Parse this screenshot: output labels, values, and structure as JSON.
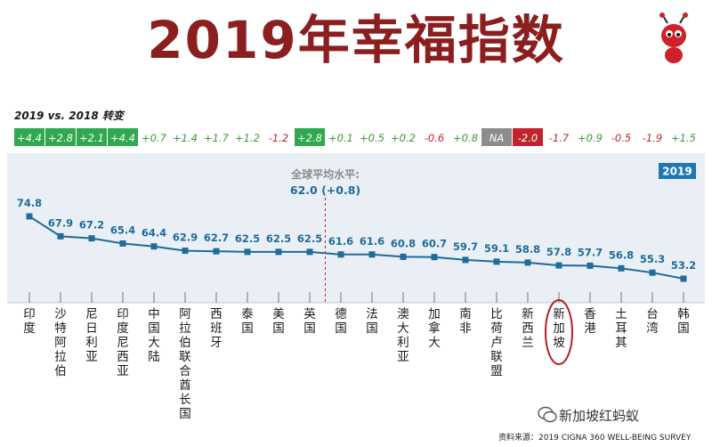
{
  "title": "2019年幸福指数",
  "change_label": "2019 vs. 2018 转变",
  "footer": {
    "source": "资料来源：2019 CIGNA 360 WELL-BEING SURVEY",
    "watermark": "新加坡红蚂蚁"
  },
  "colors": {
    "title": "#8b1e1e",
    "line": "#1f6b99",
    "positive_change": "#3a9a3a",
    "negative_change": "#c0232c",
    "badge_green": "#2fa84f",
    "badge_grey": "#8c8c8c",
    "badge_red": "#c0232c",
    "year_badge": "#1f78b4",
    "panel_bg": "#e9eff4",
    "singapore_circle": "#b21f24"
  },
  "chart_data": {
    "type": "line",
    "year_badge": "2019",
    "global_average": {
      "label": "全球平均水平:",
      "value_text": "62.0 (+0.8)",
      "value": 62.0
    },
    "categories": [
      "印度",
      "沙特阿拉伯",
      "尼日利亚",
      "印度尼西亚",
      "中国大陆",
      "阿拉伯联合酋长国",
      "西班牙",
      "泰国",
      "美国",
      "英国",
      "德国",
      "法国",
      "澳大利亚",
      "加拿大",
      "南非",
      "比荷卢联盟",
      "新西兰",
      "新加坡",
      "香港",
      "土耳其",
      "台湾",
      "韩国"
    ],
    "values": [
      74.8,
      67.9,
      67.2,
      65.4,
      64.4,
      62.9,
      62.7,
      62.5,
      62.5,
      62.5,
      61.6,
      61.6,
      60.8,
      60.7,
      59.7,
      59.1,
      58.8,
      57.8,
      57.7,
      56.8,
      55.3,
      53.2
    ],
    "value_labels": [
      "74.8",
      "67.9",
      "67.2",
      "65.4",
      "64.4",
      "62.9",
      "62.7",
      "62.5",
      "62.5",
      "62.5",
      "61.6",
      "61.6",
      "60.8",
      "60.7",
      "59.7",
      "59.1",
      "58.8",
      "57.8",
      "57.7",
      "56.8",
      "55.3",
      "53.2"
    ],
    "changes": [
      {
        "text": "+4.4",
        "style": "green-badge"
      },
      {
        "text": "+2.8",
        "style": "green-badge"
      },
      {
        "text": "+2.1",
        "style": "green-badge"
      },
      {
        "text": "+4.4",
        "style": "green-badge"
      },
      {
        "text": "+0.7",
        "style": "positive"
      },
      {
        "text": "+1.4",
        "style": "positive"
      },
      {
        "text": "+1.7",
        "style": "positive"
      },
      {
        "text": "+1.2",
        "style": "positive"
      },
      {
        "text": "-1.2",
        "style": "negative"
      },
      {
        "text": "+2.8",
        "style": "green-badge"
      },
      {
        "text": "+0.1",
        "style": "positive"
      },
      {
        "text": "+0.5",
        "style": "positive"
      },
      {
        "text": "+0.2",
        "style": "positive"
      },
      {
        "text": "-0.6",
        "style": "negative"
      },
      {
        "text": "+0.8",
        "style": "positive"
      },
      {
        "text": "NA",
        "style": "grey-badge"
      },
      {
        "text": "-2.0",
        "style": "red-badge"
      },
      {
        "text": "-1.7",
        "style": "negative"
      },
      {
        "text": "+0.9",
        "style": "positive"
      },
      {
        "text": "-0.5",
        "style": "negative"
      },
      {
        "text": "-1.9",
        "style": "negative"
      },
      {
        "text": "+1.5",
        "style": "positive"
      }
    ],
    "highlight": "新加坡"
  }
}
